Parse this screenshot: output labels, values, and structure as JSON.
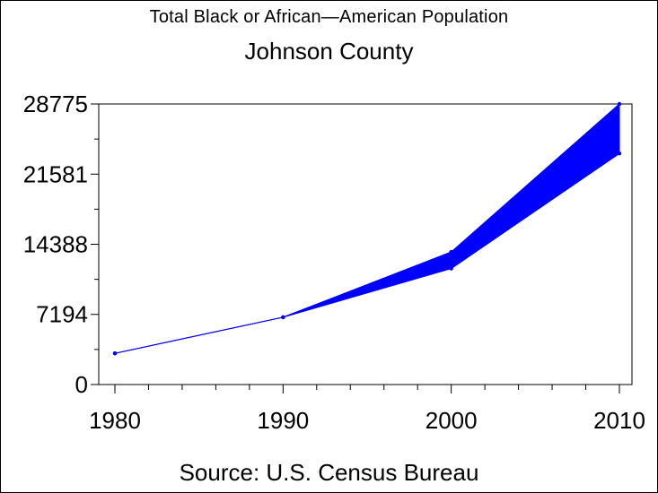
{
  "chart_data": {
    "type": "area",
    "title": "Total Black or African—American Population",
    "subtitle": "Johnson County",
    "footnote": "Source: U.S. Census Bureau",
    "xlabel": "",
    "ylabel": "",
    "x": [
      1980,
      1990,
      2000,
      2010
    ],
    "x_tick_labels": [
      "1980",
      "1990",
      "2000",
      "2010"
    ],
    "y_ticks": [
      0,
      7194,
      14388,
      21581,
      28775
    ],
    "y_tick_labels": [
      "0",
      "7194",
      "14388",
      "21581",
      "28775"
    ],
    "xlim": [
      1980,
      2010
    ],
    "ylim": [
      0,
      28775
    ],
    "series": [
      {
        "values_upper": [
          3200,
          6900,
          13600,
          28775
        ],
        "values_lower": [
          3200,
          6900,
          11900,
          23700
        ]
      }
    ],
    "colors": {
      "series": "#0000ff",
      "axis": "#000000"
    },
    "grid": false,
    "legend": "none"
  }
}
